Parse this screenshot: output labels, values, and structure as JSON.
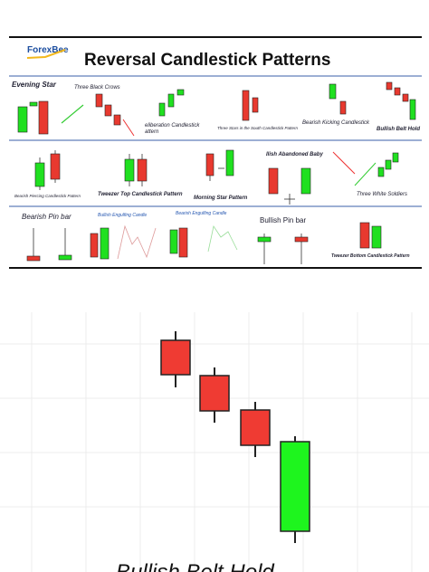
{
  "header": {
    "logo": "ForexBee",
    "title": "Reversal Candlestick Patterns"
  },
  "patterns": [
    "Evening Star",
    "Three Black Crows",
    "eliberation Candlestick",
    "attern",
    "Three Stars in the South Candlestick Pattern",
    "Bearish Kicking Candlestick",
    "Bullish Belt Hold",
    "Bearish Piercing Candlestick Pattern",
    "Tweezer Top Candlestick Pattern",
    "Morning Star Pattern",
    "llish Abandoned Baby",
    "Three White Soldiers",
    "Bearish Pin bar",
    "Bullish Engulfing Candle",
    "Bearish Engulfing Candle",
    "Bullish Pin bar",
    "Tweezer Bottom Candlestick Pattern"
  ],
  "detail": {
    "caption": "Bullish Belt Hold"
  }
}
